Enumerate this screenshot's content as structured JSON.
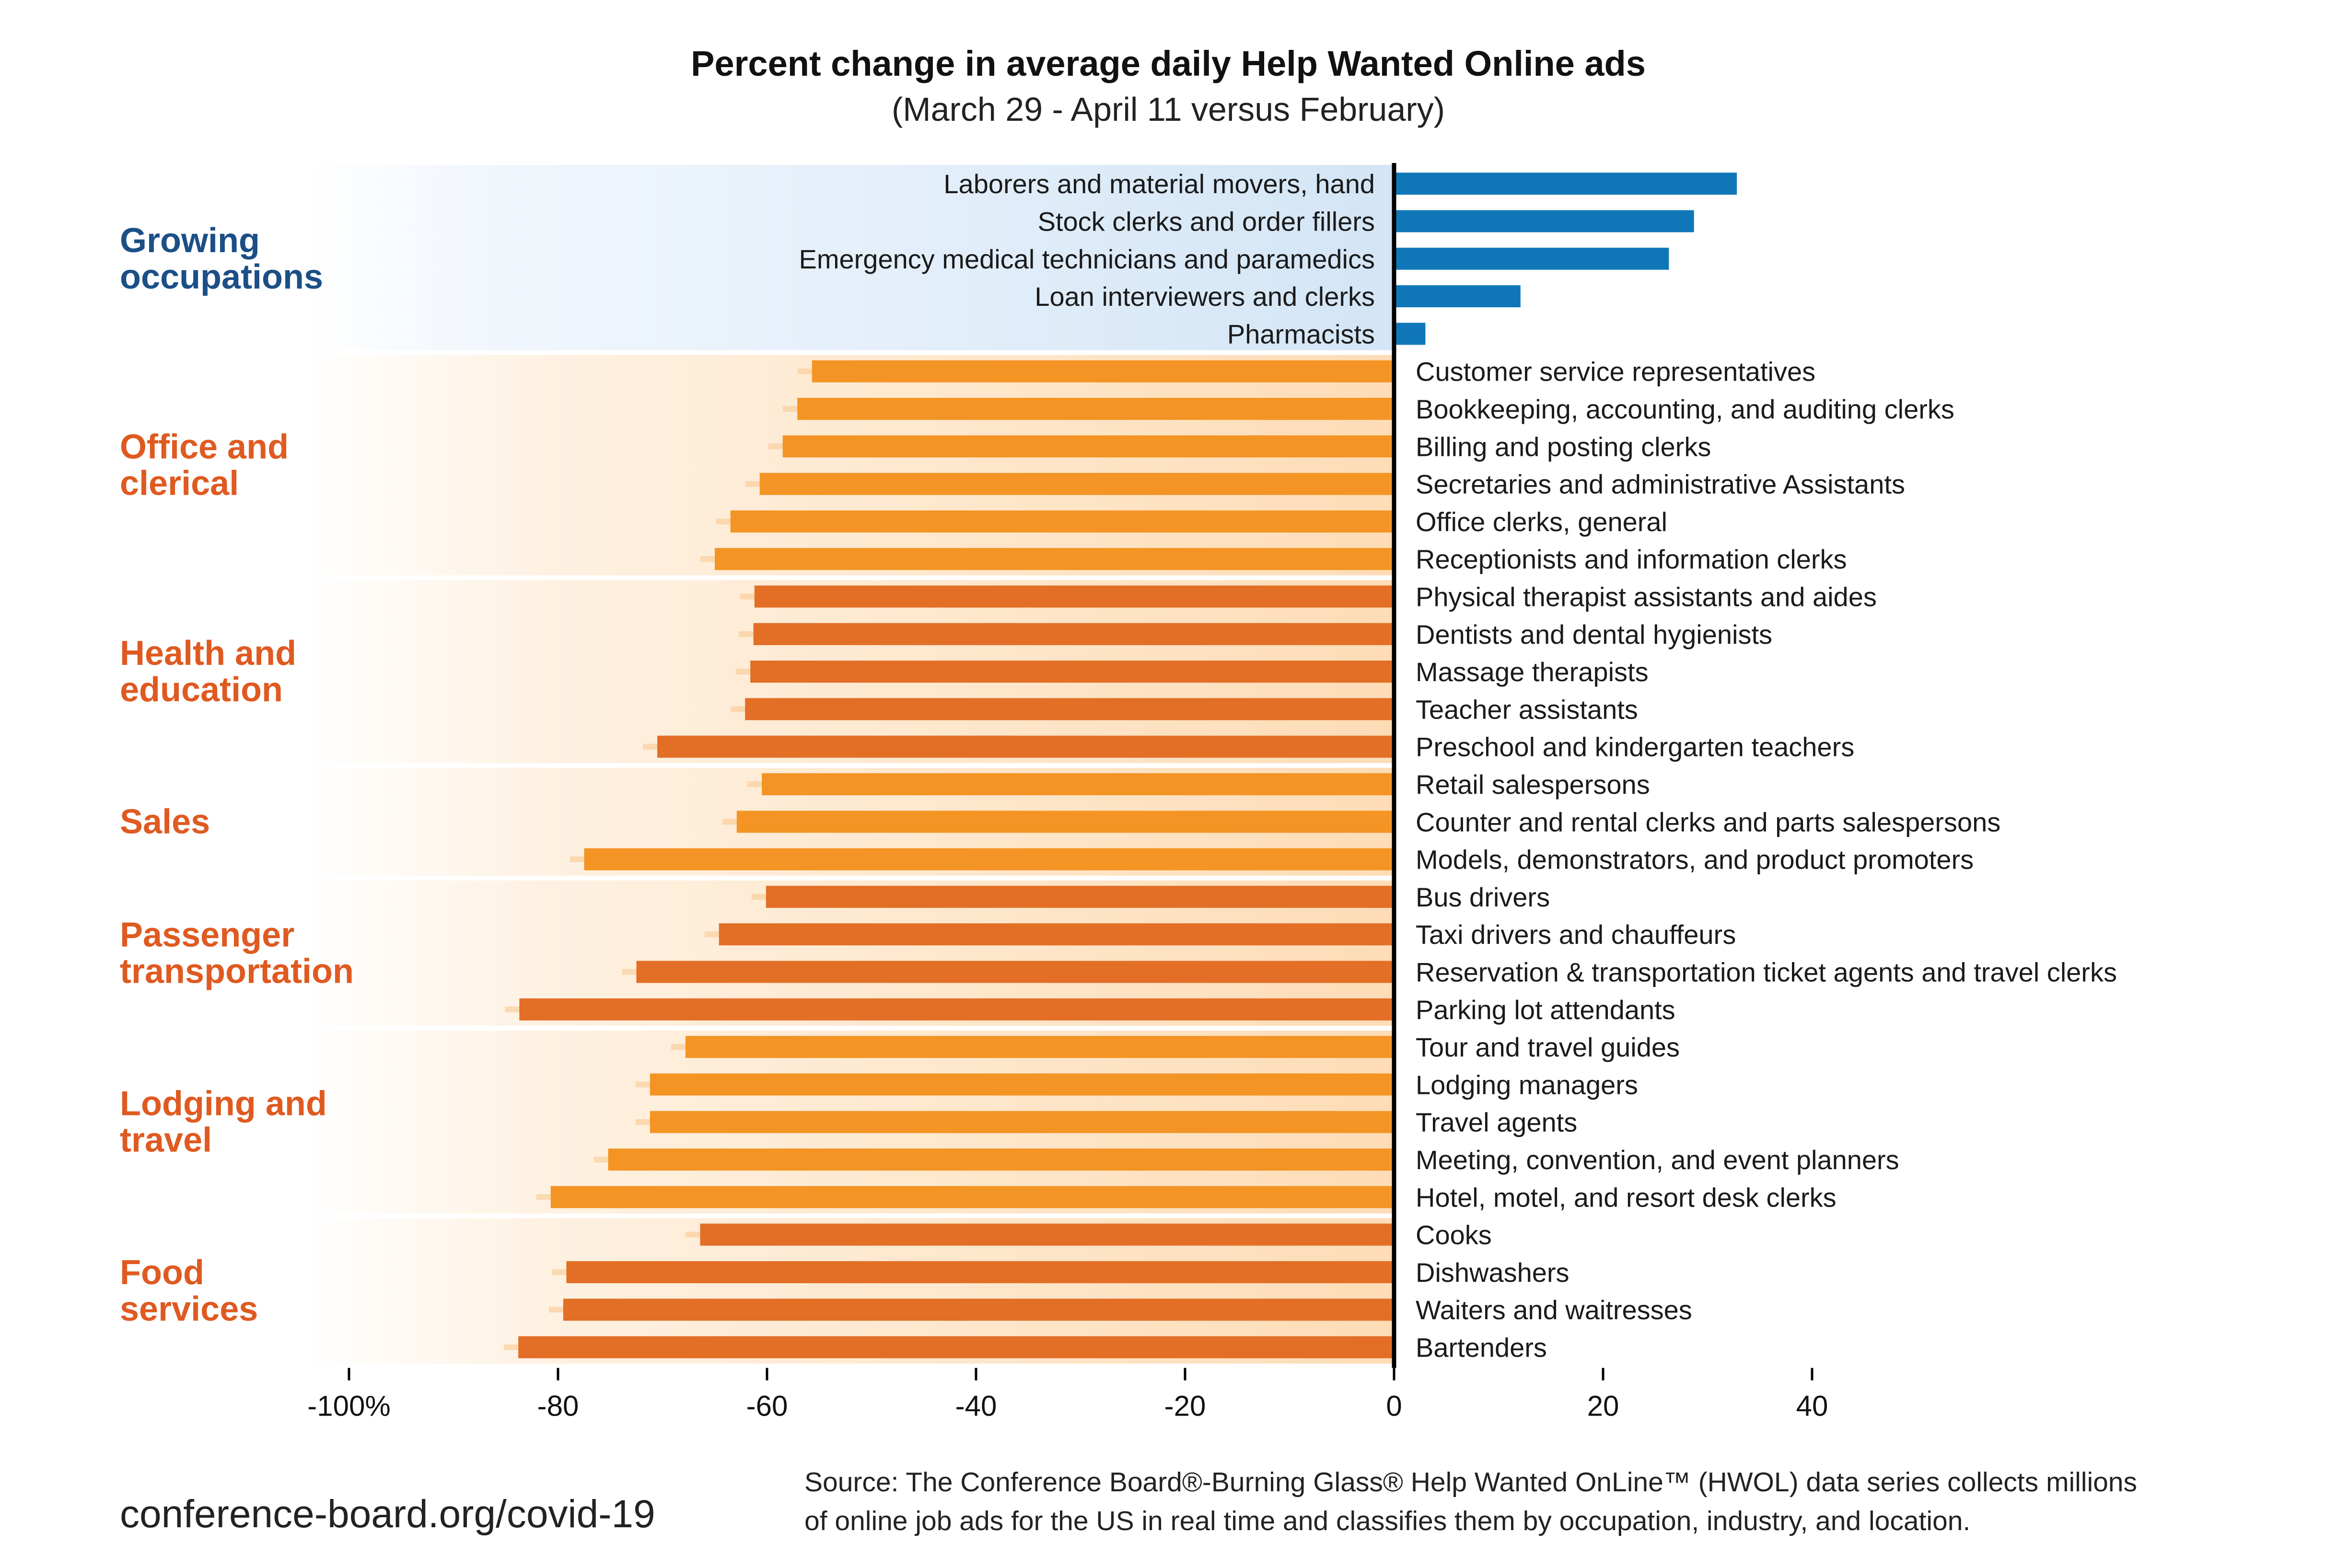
{
  "colors": {
    "growing_bar": "#0f77b8",
    "growing_band": "#d6e7f7",
    "growing_label": "#1b4f86",
    "declining_label": "#df5a21",
    "orange_light": "#f39424",
    "orange_dark": "#e36e26",
    "declining_band": "#fde3c4",
    "stripe": "#f8c78c"
  },
  "source": {
    "line1": "Source: The Conference Board®-Burning Glass® Help Wanted OnLine™ (HWOL) data series collects millions",
    "line2": "of online job ads for the US in real time and classifies them by occupation, industry, and location."
  },
  "website": "conference-board.org/covid-19",
  "chart_data": {
    "type": "bar",
    "orientation": "horizontal",
    "title": "Percent change in average daily Help Wanted Online ads",
    "subtitle": "(March 29 - April 11 versus February)",
    "xlim": [
      -100,
      40
    ],
    "x_ticks": [
      -100,
      -80,
      -60,
      -40,
      -20,
      0,
      20,
      40
    ],
    "x_tick_labels": [
      "-100%",
      "-80",
      "-60",
      "-40",
      "-20",
      "0",
      "20",
      "40"
    ],
    "groups": [
      {
        "label_lines": [
          "Growing",
          "occupations"
        ],
        "tone": "growing",
        "items": [
          {
            "label": "Laborers and material movers, hand",
            "value": 32.8
          },
          {
            "label": "Stock clerks and order fillers",
            "value": 28.7
          },
          {
            "label": "Emergency medical technicians and paramedics",
            "value": 26.3
          },
          {
            "label": "Loan interviewers and clerks",
            "value": 12.1
          },
          {
            "label": "Pharmacists",
            "value": 3.0
          }
        ]
      },
      {
        "label_lines": [
          "Office and",
          "clerical"
        ],
        "tone": "light",
        "items": [
          {
            "label": "Customer service representatives",
            "value": -55.7
          },
          {
            "label": "Bookkeeping, accounting, and auditing clerks",
            "value": -57.1
          },
          {
            "label": "Billing and posting clerks",
            "value": -58.5
          },
          {
            "label": "Secretaries and administrative Assistants",
            "value": -60.7
          },
          {
            "label": "Office clerks, general",
            "value": -63.5
          },
          {
            "label": "Receptionists and information clerks",
            "value": -65.0
          }
        ]
      },
      {
        "label_lines": [
          "Health and",
          "education"
        ],
        "tone": "dark",
        "items": [
          {
            "label": "Physical therapist assistants and aides",
            "value": -61.2
          },
          {
            "label": "Dentists and dental hygienists",
            "value": -61.3
          },
          {
            "label": "Massage therapists",
            "value": -61.6
          },
          {
            "label": "Teacher assistants",
            "value": -62.1
          },
          {
            "label": "Preschool and kindergarten teachers",
            "value": -70.5
          }
        ]
      },
      {
        "label_lines": [
          "Sales"
        ],
        "tone": "light",
        "items": [
          {
            "label": "Retail salespersons",
            "value": -60.5
          },
          {
            "label": "Counter and rental clerks and parts salespersons",
            "value": -62.9
          },
          {
            "label": "Models, demonstrators, and product promoters",
            "value": -77.5
          }
        ]
      },
      {
        "label_lines": [
          "Passenger",
          "transportation"
        ],
        "tone": "dark",
        "items": [
          {
            "label": "Bus drivers",
            "value": -60.1
          },
          {
            "label": "Taxi drivers and chauffeurs",
            "value": -64.6
          },
          {
            "label": "Reservation & transportation ticket agents and travel clerks",
            "value": -72.5
          },
          {
            "label": "Parking lot attendants",
            "value": -83.7
          }
        ]
      },
      {
        "label_lines": [
          "Lodging and",
          "travel"
        ],
        "tone": "light",
        "items": [
          {
            "label": "Tour and travel guides",
            "value": -67.8
          },
          {
            "label": "Lodging managers",
            "value": -71.2
          },
          {
            "label": "Travel agents",
            "value": -71.2
          },
          {
            "label": "Meeting, convention, and event planners",
            "value": -75.2
          },
          {
            "label": "Hotel, motel, and resort desk clerks",
            "value": -80.7
          }
        ]
      },
      {
        "label_lines": [
          "Food",
          "services"
        ],
        "tone": "dark",
        "items": [
          {
            "label": "Cooks",
            "value": -66.4
          },
          {
            "label": "Dishwashers",
            "value": -79.2
          },
          {
            "label": "Waiters and waitresses",
            "value": -79.5
          },
          {
            "label": "Bartenders",
            "value": -83.8
          }
        ]
      }
    ]
  }
}
